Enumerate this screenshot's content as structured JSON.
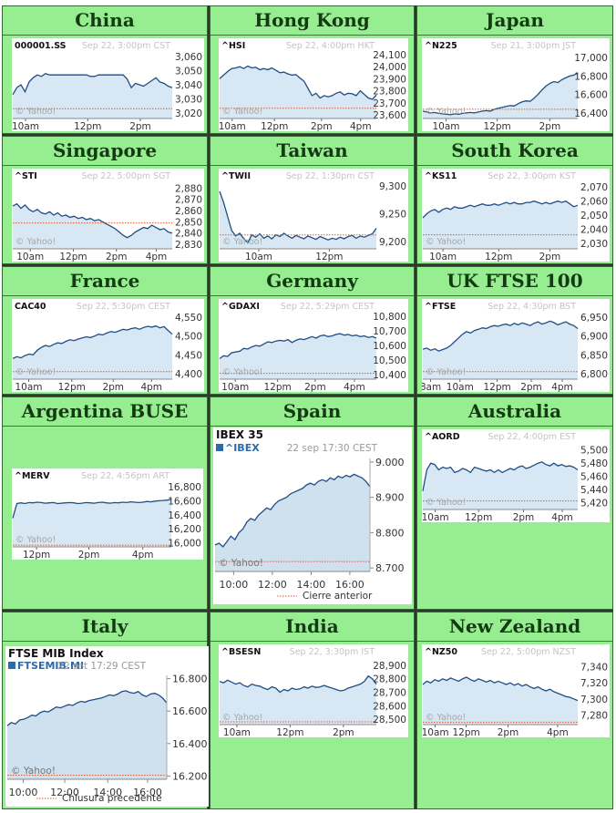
{
  "footer": {
    "watermark": "© Yahoo!"
  },
  "markets": [
    {
      "id": "china",
      "title": "China",
      "chart_data": {
        "type": "area",
        "symbol": "000001.SS",
        "date": "Sep 22, 3:00pm CST",
        "x_ticks": [
          "10am",
          "12pm",
          "2pm"
        ],
        "x_tick_pos": [
          0.08,
          0.47,
          0.8
        ],
        "y_ticks": [
          3020,
          3030,
          3040,
          3050,
          3060
        ],
        "ylim": [
          3016,
          3064
        ],
        "prev_close": 3023,
        "values": [
          3033,
          3038,
          3040,
          3035,
          3042,
          3045,
          3047,
          3046,
          3048,
          3047,
          3047,
          3047,
          3047,
          3047,
          3047,
          3047,
          3047,
          3047,
          3047,
          3046,
          3046,
          3047,
          3047,
          3047,
          3047,
          3047,
          3047,
          3047,
          3044,
          3038,
          3041,
          3040,
          3039,
          3041,
          3043,
          3045,
          3042,
          3041,
          3039,
          3038
        ]
      }
    },
    {
      "id": "hongkong",
      "title": "Hong Kong",
      "chart_data": {
        "type": "area",
        "symbol": "^HSI",
        "date": "Sep 22, 4:00pm HKT",
        "x_ticks": [
          "10am",
          "12pm",
          "2pm",
          "4pm"
        ],
        "x_tick_pos": [
          0.08,
          0.35,
          0.65,
          0.9
        ],
        "y_ticks": [
          23600,
          23700,
          23800,
          23900,
          24000,
          24100
        ],
        "ylim": [
          23570,
          24130
        ],
        "prev_close": 23655,
        "values": [
          23900,
          23930,
          23960,
          23985,
          23990,
          24000,
          23985,
          24005,
          23990,
          23995,
          23975,
          23985,
          23975,
          23990,
          23970,
          23950,
          23955,
          23940,
          23930,
          23935,
          23905,
          23880,
          23820,
          23760,
          23780,
          23740,
          23760,
          23750,
          23760,
          23780,
          23790,
          23765,
          23780,
          23775,
          23760,
          23800,
          23770,
          23740,
          23730,
          23765
        ]
      }
    },
    {
      "id": "japan",
      "title": "Japan",
      "chart_data": {
        "type": "area",
        "symbol": "^N225",
        "date": "Sep 21, 3:00pm JST",
        "x_ticks": [
          "10am",
          "12pm",
          "2pm"
        ],
        "x_tick_pos": [
          0.15,
          0.48,
          0.82
        ],
        "y_ticks": [
          16400,
          16600,
          16800,
          17000
        ],
        "ylim": [
          16340,
          17070
        ],
        "prev_close": 16440,
        "values": [
          16420,
          16410,
          16400,
          16405,
          16395,
          16390,
          16385,
          16380,
          16390,
          16385,
          16395,
          16400,
          16405,
          16400,
          16410,
          16420,
          16425,
          16420,
          16440,
          16450,
          16460,
          16470,
          16480,
          16475,
          16500,
          16520,
          16530,
          16525,
          16560,
          16600,
          16650,
          16690,
          16720,
          16740,
          16730,
          16760,
          16780,
          16800,
          16810,
          16830
        ]
      }
    },
    {
      "id": "singapore",
      "title": "Singapore",
      "chart_data": {
        "type": "area",
        "symbol": "^STI",
        "date": "Sep 22, 5:00pm SGT",
        "x_ticks": [
          "10am",
          "12pm",
          "2pm",
          "4pm"
        ],
        "x_tick_pos": [
          0.11,
          0.38,
          0.65,
          0.9
        ],
        "y_ticks": [
          2830,
          2840,
          2850,
          2860,
          2870,
          2880
        ],
        "ylim": [
          2826,
          2886
        ],
        "prev_close": 2849,
        "values": [
          2864,
          2866,
          2862,
          2865,
          2861,
          2859,
          2861,
          2858,
          2857,
          2859,
          2856,
          2858,
          2855,
          2856,
          2854,
          2855,
          2853,
          2854,
          2852,
          2853,
          2851,
          2852,
          2850,
          2848,
          2846,
          2844,
          2841,
          2838,
          2836,
          2838,
          2841,
          2843,
          2845,
          2844,
          2847,
          2845,
          2843,
          2844,
          2841,
          2840
        ]
      }
    },
    {
      "id": "taiwan",
      "title": "Taiwan",
      "chart_data": {
        "type": "area",
        "symbol": "^TWII",
        "date": "Sep 22, 1:30pm CST",
        "x_ticks": [
          "10am",
          "12pm"
        ],
        "x_tick_pos": [
          0.25,
          0.7
        ],
        "y_ticks": [
          9200,
          9250,
          9300
        ],
        "ylim": [
          9187,
          9308
        ],
        "prev_close": 9212,
        "values": [
          9290,
          9270,
          9245,
          9220,
          9210,
          9215,
          9205,
          9198,
          9212,
          9208,
          9214,
          9206,
          9210,
          9205,
          9212,
          9209,
          9215,
          9210,
          9206,
          9211,
          9208,
          9205,
          9210,
          9207,
          9204,
          9209,
          9206,
          9203,
          9206,
          9204,
          9208,
          9205,
          9209,
          9211,
          9206,
          9210,
          9208,
          9211,
          9214,
          9224
        ]
      }
    },
    {
      "id": "southkorea",
      "title": "South Korea",
      "chart_data": {
        "type": "area",
        "symbol": "^KS11",
        "date": "Sep 22, 3:00pm KST",
        "x_ticks": [
          "10am",
          "12pm",
          "2pm"
        ],
        "x_tick_pos": [
          0.13,
          0.49,
          0.82
        ],
        "y_ticks": [
          2030,
          2040,
          2050,
          2060,
          2070
        ],
        "ylim": [
          2026,
          2074
        ],
        "prev_close": 2036,
        "values": [
          2048,
          2051,
          2053,
          2054,
          2052,
          2054,
          2055,
          2054,
          2056,
          2055,
          2055,
          2056,
          2057,
          2056,
          2057,
          2058,
          2057,
          2057,
          2058,
          2057,
          2058,
          2059,
          2058,
          2059,
          2058,
          2058,
          2059,
          2059,
          2060,
          2059,
          2058,
          2059,
          2058,
          2059,
          2060,
          2059,
          2060,
          2058,
          2056,
          2057
        ]
      }
    },
    {
      "id": "france",
      "title": "France",
      "chart_data": {
        "type": "area",
        "symbol": "CAC40",
        "date": "Sep 22, 5:30pm CEST",
        "x_ticks": [
          "10am",
          "12pm",
          "2pm",
          "4pm"
        ],
        "x_tick_pos": [
          0.1,
          0.37,
          0.63,
          0.87
        ],
        "y_ticks": [
          4400,
          4450,
          4500,
          4550
        ],
        "ylim": [
          4385,
          4565
        ],
        "prev_close": 4405,
        "values": [
          4440,
          4445,
          4442,
          4448,
          4452,
          4450,
          4462,
          4470,
          4475,
          4472,
          4478,
          4482,
          4480,
          4486,
          4490,
          4488,
          4492,
          4495,
          4498,
          4496,
          4500,
          4505,
          4503,
          4508,
          4512,
          4510,
          4514,
          4518,
          4516,
          4520,
          4522,
          4518,
          4523,
          4526,
          4524,
          4527,
          4522,
          4525,
          4515,
          4505
        ]
      }
    },
    {
      "id": "germany",
      "title": "Germany",
      "chart_data": {
        "type": "area",
        "symbol": "^GDAXI",
        "date": "Sep 22, 5:29pm CEST",
        "x_ticks": [
          "10am",
          "12pm",
          "2pm",
          "4pm"
        ],
        "x_tick_pos": [
          0.1,
          0.37,
          0.61,
          0.86
        ],
        "y_ticks": [
          10400,
          10500,
          10600,
          10700,
          10800
        ],
        "ylim": [
          10370,
          10830
        ],
        "prev_close": 10410,
        "values": [
          10510,
          10530,
          10525,
          10550,
          10555,
          10560,
          10580,
          10575,
          10590,
          10600,
          10595,
          10610,
          10625,
          10620,
          10630,
          10635,
          10630,
          10640,
          10620,
          10635,
          10645,
          10640,
          10650,
          10660,
          10650,
          10665,
          10670,
          10660,
          10665,
          10675,
          10680,
          10670,
          10675,
          10665,
          10670,
          10660,
          10665,
          10655,
          10660,
          10650
        ]
      }
    },
    {
      "id": "uk",
      "title": "UK FTSE 100",
      "chart_data": {
        "type": "area",
        "symbol": "^FTSE",
        "date": "Sep 22, 4:30pm BST",
        "x_ticks": [
          "8am",
          "10am",
          "12pm",
          "2pm",
          "4pm"
        ],
        "x_tick_pos": [
          0.05,
          0.24,
          0.48,
          0.7,
          0.9
        ],
        "y_ticks": [
          6800,
          6850,
          6900,
          6950
        ],
        "ylim": [
          6785,
          6965
        ],
        "prev_close": 6805,
        "values": [
          6865,
          6868,
          6862,
          6866,
          6860,
          6864,
          6868,
          6875,
          6885,
          6895,
          6905,
          6912,
          6908,
          6915,
          6918,
          6922,
          6920,
          6925,
          6928,
          6926,
          6930,
          6932,
          6928,
          6934,
          6930,
          6935,
          6932,
          6928,
          6934,
          6938,
          6932,
          6935,
          6940,
          6936,
          6930,
          6934,
          6938,
          6932,
          6928,
          6920
        ]
      }
    },
    {
      "id": "argentina",
      "title": "Argentina BUSE",
      "chart_data": {
        "type": "area",
        "symbol": "^MERV",
        "date": "Sep 22, 4:56pm ART",
        "x_ticks": [
          "12pm",
          "2pm",
          "4pm"
        ],
        "x_tick_pos": [
          0.15,
          0.48,
          0.82
        ],
        "y_ticks": [
          16000,
          16200,
          16400,
          16600,
          16800
        ],
        "ylim": [
          15940,
          16880
        ],
        "prev_close": 15965,
        "values": [
          16350,
          16560,
          16570,
          16560,
          16575,
          16570,
          16580,
          16575,
          16565,
          16570,
          16575,
          16560,
          16565,
          16570,
          16575,
          16570,
          16560,
          16565,
          16575,
          16570,
          16565,
          16575,
          16580,
          16570,
          16565,
          16575,
          16570,
          16580,
          16575,
          16585,
          16580,
          16575,
          16580,
          16590,
          16585,
          16595,
          16600,
          16605,
          16610,
          16620
        ]
      }
    },
    {
      "id": "spain",
      "title": "Spain",
      "chart_data": {
        "type": "area",
        "chart_title": "IBEX 35",
        "symbol": "^IBEX",
        "date": "22 sep 17:30 CEST",
        "x_ticks": [
          "10:00",
          "12:00",
          "14:00",
          "16:00"
        ],
        "x_tick_pos": [
          0.12,
          0.37,
          0.62,
          0.87
        ],
        "y_ticks": [
          "8.700",
          "8.800",
          "8.900",
          "9.000"
        ],
        "y_tick_values": [
          8700,
          8800,
          8900,
          9000
        ],
        "ylim": [
          8690,
          9010
        ],
        "prev_close": 8718,
        "legend_label": "Cierre anterior",
        "values": [
          8765,
          8770,
          8760,
          8775,
          8790,
          8780,
          8800,
          8810,
          8830,
          8840,
          8835,
          8850,
          8860,
          8870,
          8865,
          8880,
          8890,
          8895,
          8900,
          8910,
          8915,
          8920,
          8925,
          8935,
          8940,
          8935,
          8945,
          8950,
          8945,
          8955,
          8950,
          8960,
          8955,
          8962,
          8958,
          8965,
          8960,
          8955,
          8945,
          8930
        ]
      }
    },
    {
      "id": "australia",
      "title": "Australia",
      "chart_data": {
        "type": "area",
        "symbol": "^AORD",
        "date": "Sep 22, 4:00pm EST",
        "x_ticks": [
          "10am",
          "12pm",
          "2pm",
          "4pm"
        ],
        "x_tick_pos": [
          0.08,
          0.36,
          0.65,
          0.9
        ],
        "y_ticks": [
          5420,
          5440,
          5460,
          5480,
          5500
        ],
        "ylim": [
          5410,
          5512
        ],
        "prev_close": 5423,
        "values": [
          5438,
          5470,
          5480,
          5478,
          5470,
          5474,
          5472,
          5474,
          5466,
          5468,
          5472,
          5470,
          5466,
          5474,
          5472,
          5470,
          5468,
          5470,
          5466,
          5470,
          5466,
          5469,
          5472,
          5470,
          5474,
          5476,
          5472,
          5474,
          5477,
          5480,
          5482,
          5478,
          5476,
          5480,
          5476,
          5478,
          5475,
          5476,
          5474,
          5470
        ]
      }
    },
    {
      "id": "italy",
      "title": "Italy",
      "chart_data": {
        "type": "area",
        "chart_title": "FTSE MIB Index",
        "symbol": "FTSEMIB.MI",
        "date": "22 set 17:29 CEST",
        "x_ticks": [
          "10:00",
          "12:00",
          "14:00",
          "16:00"
        ],
        "x_tick_pos": [
          0.1,
          0.36,
          0.63,
          0.88
        ],
        "y_ticks": [
          "16.200",
          "16.400",
          "16.600",
          "16.800"
        ],
        "y_tick_values": [
          16200,
          16400,
          16600,
          16800
        ],
        "ylim": [
          16180,
          16820
        ],
        "prev_close": 16205,
        "legend_label": "Chiusura precedente",
        "values": [
          16510,
          16530,
          16520,
          16545,
          16550,
          16560,
          16575,
          16570,
          16590,
          16600,
          16595,
          16610,
          16625,
          16620,
          16630,
          16640,
          16635,
          16650,
          16660,
          16655,
          16665,
          16670,
          16675,
          16680,
          16690,
          16700,
          16695,
          16705,
          16720,
          16725,
          16715,
          16710,
          16720,
          16700,
          16690,
          16705,
          16710,
          16700,
          16680,
          16650
        ]
      }
    },
    {
      "id": "india",
      "title": "India",
      "chart_data": {
        "type": "area",
        "symbol": "^BSESN",
        "date": "Sep 22, 3:30pm IST",
        "x_ticks": [
          "10am",
          "12pm",
          "2pm"
        ],
        "x_tick_pos": [
          0.11,
          0.45,
          0.79
        ],
        "y_ticks": [
          28500,
          28600,
          28700,
          28800,
          28900
        ],
        "ylim": [
          28460,
          28960
        ],
        "prev_close": 28480,
        "values": [
          28780,
          28770,
          28790,
          28775,
          28760,
          28770,
          28750,
          28740,
          28760,
          28750,
          28745,
          28730,
          28720,
          28740,
          28730,
          28700,
          28720,
          28710,
          28730,
          28720,
          28725,
          28740,
          28730,
          28745,
          28735,
          28740,
          28750,
          28740,
          28730,
          28720,
          28710,
          28715,
          28730,
          28740,
          28750,
          28760,
          28780,
          28820,
          28800,
          28760
        ]
      }
    },
    {
      "id": "newzealand",
      "title": "New Zealand",
      "chart_data": {
        "type": "area",
        "symbol": "^NZ50",
        "date": "Sep 22, 5:00pm NZST",
        "x_ticks": [
          "10am",
          "12pm",
          "2pm",
          "4pm"
        ],
        "x_tick_pos": [
          0.08,
          0.28,
          0.55,
          0.87
        ],
        "y_ticks": [
          7280,
          7300,
          7320,
          7340
        ],
        "ylim": [
          7268,
          7352
        ],
        "prev_close": 7271,
        "values": [
          7318,
          7322,
          7320,
          7324,
          7322,
          7325,
          7323,
          7326,
          7324,
          7322,
          7325,
          7327,
          7324,
          7322,
          7325,
          7323,
          7321,
          7323,
          7320,
          7322,
          7320,
          7318,
          7320,
          7317,
          7319,
          7316,
          7318,
          7315,
          7313,
          7315,
          7312,
          7310,
          7312,
          7309,
          7307,
          7305,
          7303,
          7302,
          7300,
          7298
        ]
      }
    }
  ]
}
